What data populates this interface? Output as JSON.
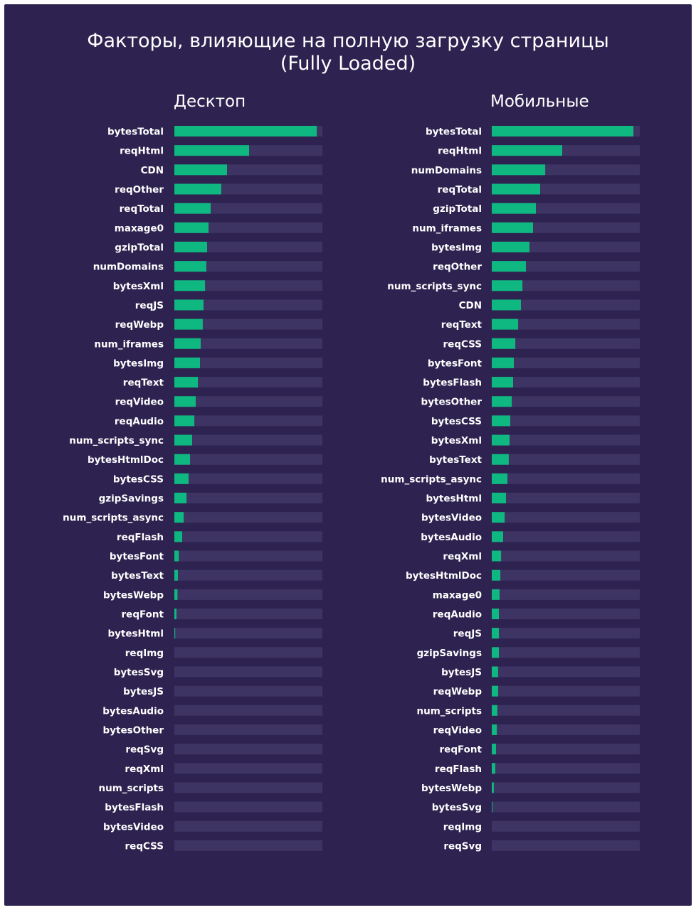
{
  "page": {
    "title_line1": "Факторы, влияющие на полную загрузку страницы",
    "title_line2": "(Fully Loaded)"
  },
  "colors": {
    "background": "#2e2350",
    "track": "#3d3463",
    "bar": "#0fb880",
    "text": "#ffffff"
  },
  "chart_data": [
    {
      "type": "bar",
      "orientation": "horizontal",
      "title": "Десктоп",
      "xlim": [
        0,
        1
      ],
      "grid": false,
      "categories": [
        "bytesTotal",
        "reqHtml",
        "CDN",
        "reqOther",
        "reqTotal",
        "maxage0",
        "gzipTotal",
        "numDomains",
        "bytesXml",
        "reqJS",
        "reqWebp",
        "num_iframes",
        "bytesImg",
        "reqText",
        "reqVideo",
        "reqAudio",
        "num_scripts_sync",
        "bytesHtmlDoc",
        "bytesCSS",
        "gzipSavings",
        "num_scripts_async",
        "reqFlash",
        "bytesFont",
        "bytesText",
        "bytesWebp",
        "reqFont",
        "bytesHtml",
        "reqImg",
        "bytesSvg",
        "bytesJS",
        "bytesAudio",
        "bytesOther",
        "reqSvg",
        "reqXml",
        "num_scripts",
        "bytesFlash",
        "bytesVideo",
        "reqCSS"
      ],
      "values": [
        0.962,
        0.505,
        0.356,
        0.317,
        0.245,
        0.231,
        0.221,
        0.216,
        0.207,
        0.197,
        0.192,
        0.178,
        0.173,
        0.159,
        0.144,
        0.135,
        0.12,
        0.106,
        0.096,
        0.082,
        0.063,
        0.053,
        0.03,
        0.024,
        0.021,
        0.014,
        0.006,
        0,
        0,
        0,
        0,
        0,
        0,
        0,
        0,
        0,
        0,
        0
      ]
    },
    {
      "type": "bar",
      "orientation": "horizontal",
      "title": "Мобильные",
      "xlim": [
        0,
        1
      ],
      "grid": false,
      "categories": [
        "bytesTotal",
        "reqHtml",
        "numDomains",
        "reqTotal",
        "gzipTotal",
        "num_iframes",
        "bytesImg",
        "reqOther",
        "num_scripts_sync",
        "CDN",
        "reqText",
        "reqCSS",
        "bytesFont",
        "bytesFlash",
        "bytesOther",
        "bytesCSS",
        "bytesXml",
        "bytesText",
        "num_scripts_async",
        "bytesHtml",
        "bytesVideo",
        "bytesAudio",
        "reqXml",
        "bytesHtmlDoc",
        "maxage0",
        "reqAudio",
        "reqJS",
        "gzipSavings",
        "bytesJS",
        "reqWebp",
        "num_scripts",
        "reqVideo",
        "reqFont",
        "reqFlash",
        "bytesWebp",
        "bytesSvg",
        "reqImg",
        "reqSvg"
      ],
      "values": [
        0.957,
        0.476,
        0.361,
        0.327,
        0.298,
        0.279,
        0.255,
        0.231,
        0.207,
        0.197,
        0.178,
        0.159,
        0.149,
        0.144,
        0.135,
        0.125,
        0.12,
        0.115,
        0.106,
        0.096,
        0.087,
        0.077,
        0.063,
        0.058,
        0.053,
        0.048,
        0.048,
        0.048,
        0.043,
        0.043,
        0.038,
        0.034,
        0.029,
        0.024,
        0.014,
        0.005,
        0,
        0
      ]
    }
  ]
}
